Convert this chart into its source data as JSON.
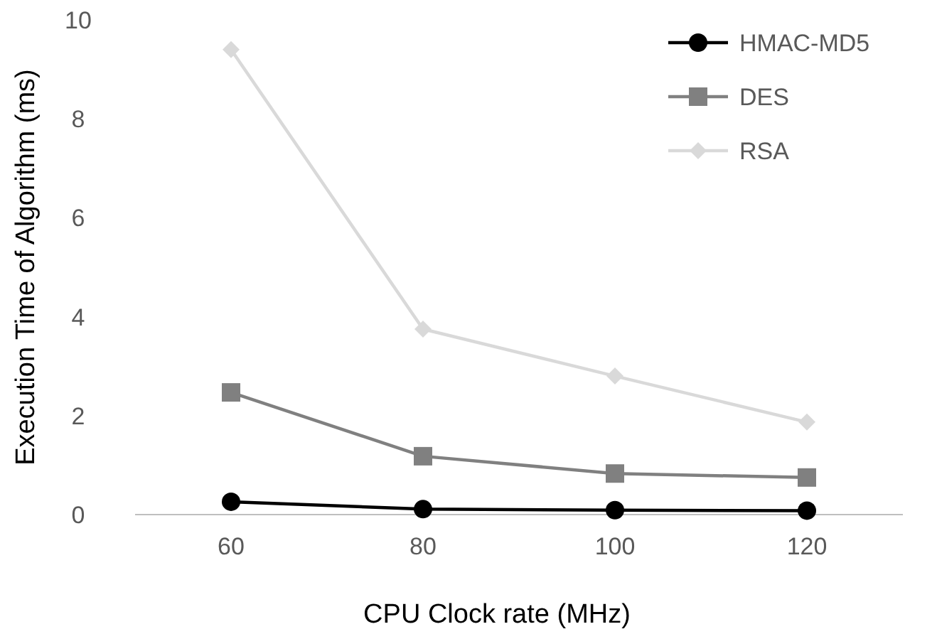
{
  "chart_data": {
    "type": "line",
    "xlabel": "CPU Clock rate (MHz)",
    "ylabel": "Execution Time of Algorithm (ms)",
    "categories": [
      "60",
      "80",
      "100",
      "120"
    ],
    "ylim": [
      0,
      10
    ],
    "yticks": [
      0,
      2,
      4,
      6,
      8,
      10
    ],
    "grid": false,
    "legend": "top right",
    "series": [
      {
        "name": "HMAC-MD5",
        "color": "#000000",
        "marker": "circle",
        "values": [
          0.26,
          0.11,
          0.09,
          0.08
        ]
      },
      {
        "name": "DES",
        "color": "#808080",
        "marker": "square",
        "values": [
          2.47,
          1.18,
          0.83,
          0.75
        ]
      },
      {
        "name": "RSA",
        "color": "#d9d9d9",
        "marker": "diamond",
        "values": [
          9.4,
          3.75,
          2.8,
          1.87
        ]
      }
    ]
  }
}
